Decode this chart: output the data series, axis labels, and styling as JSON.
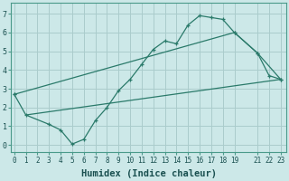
{
  "xlabel": "Humidex (Indice chaleur)",
  "bg_color": "#cce8e8",
  "grid_color": "#aacccc",
  "line_color": "#2a7a6a",
  "curve1_x": [
    0,
    1,
    3,
    4,
    5,
    6,
    7,
    8,
    9,
    10,
    11,
    12,
    13,
    14,
    15,
    16,
    17,
    18,
    19,
    21,
    22,
    23
  ],
  "curve1_y": [
    2.7,
    1.6,
    1.1,
    0.8,
    0.05,
    0.3,
    1.3,
    2.0,
    2.9,
    3.5,
    4.3,
    5.1,
    5.55,
    5.4,
    6.4,
    6.9,
    6.8,
    6.7,
    6.0,
    4.9,
    3.7,
    3.5
  ],
  "curve2_x": [
    0,
    19,
    21,
    23
  ],
  "curve2_y": [
    2.7,
    6.0,
    4.9,
    3.5
  ],
  "curve3_x": [
    1,
    23
  ],
  "curve3_y": [
    1.6,
    3.5
  ],
  "xlim": [
    -0.3,
    23.5
  ],
  "ylim": [
    -0.4,
    7.6
  ],
  "xticks": [
    0,
    1,
    2,
    3,
    4,
    5,
    6,
    7,
    8,
    9,
    10,
    11,
    12,
    13,
    14,
    15,
    16,
    17,
    18,
    19,
    21,
    22,
    23
  ],
  "xtick_labels": [
    "0",
    "1",
    "2",
    "3",
    "4",
    "5",
    "6",
    "7",
    "8",
    "9",
    "10",
    "11",
    "12",
    "13",
    "14",
    "15",
    "16",
    "17",
    "18",
    "19",
    "21",
    "22",
    "23"
  ],
  "yticks": [
    0,
    1,
    2,
    3,
    4,
    5,
    6,
    7
  ],
  "tick_fontsize": 5.5,
  "xlabel_fontsize": 7.5
}
